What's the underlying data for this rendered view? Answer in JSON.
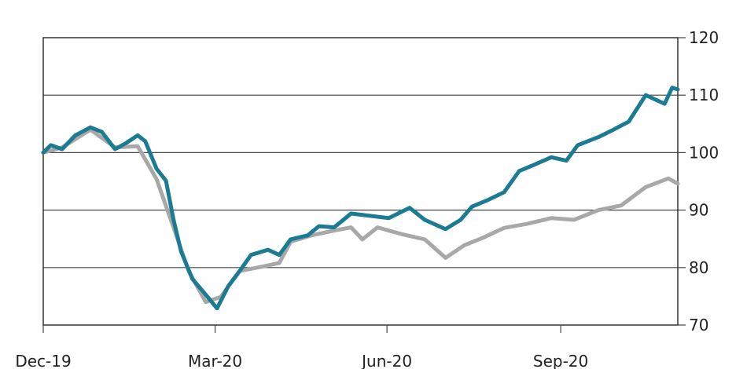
{
  "chart_data": {
    "type": "line",
    "title": "",
    "xlabel": "",
    "ylabel": "",
    "x_range": [
      "2019-12-31",
      "2020-12-01"
    ],
    "ylim": [
      70,
      120
    ],
    "y_ticks": [
      70,
      80,
      90,
      100,
      110,
      120
    ],
    "y_axis_side": "right",
    "x_ticks": [
      {
        "date": "2019-12-31",
        "label": "Dec-19"
      },
      {
        "date": "2020-03-31",
        "label": "Mar-20"
      },
      {
        "date": "2020-06-30",
        "label": "Jun-20"
      },
      {
        "date": "2020-09-30",
        "label": "Sep-20"
      }
    ],
    "grid": "horizontal",
    "legend": "none",
    "series": [
      {
        "color": "#1b7b93",
        "points": [
          [
            "2019-12-31",
            100
          ],
          [
            "2020-01-04",
            101.3
          ],
          [
            "2020-01-10",
            100.6
          ],
          [
            "2020-01-17",
            103
          ],
          [
            "2020-01-25",
            104.4
          ],
          [
            "2020-01-31",
            103.6
          ],
          [
            "2020-02-07",
            100.6
          ],
          [
            "2020-02-13",
            101.7
          ],
          [
            "2020-02-19",
            103
          ],
          [
            "2020-02-23",
            102
          ],
          [
            "2020-02-29",
            97.2
          ],
          [
            "2020-03-05",
            95.1
          ],
          [
            "2020-03-09",
            88.3
          ],
          [
            "2020-03-13",
            82.8
          ],
          [
            "2020-03-19",
            78
          ],
          [
            "2020-03-26",
            75.3
          ],
          [
            "2020-04-01",
            72.9
          ],
          [
            "2020-04-07",
            76.8
          ],
          [
            "2020-04-13",
            79.4
          ],
          [
            "2020-04-19",
            82.2
          ],
          [
            "2020-04-28",
            83.1
          ],
          [
            "2020-05-04",
            82.2
          ],
          [
            "2020-05-10",
            84.9
          ],
          [
            "2020-05-19",
            85.6
          ],
          [
            "2020-05-25",
            87.2
          ],
          [
            "2020-06-02",
            87
          ],
          [
            "2020-06-11",
            89.4
          ],
          [
            "2020-06-21",
            89
          ],
          [
            "2020-07-01",
            88.6
          ],
          [
            "2020-07-12",
            90.4
          ],
          [
            "2020-07-20",
            88.3
          ],
          [
            "2020-07-31",
            86.7
          ],
          [
            "2020-08-08",
            88.3
          ],
          [
            "2020-08-14",
            90.6
          ],
          [
            "2020-08-22",
            91.7
          ],
          [
            "2020-08-31",
            93.1
          ],
          [
            "2020-09-08",
            96.8
          ],
          [
            "2020-09-16",
            97.9
          ],
          [
            "2020-09-25",
            99.2
          ],
          [
            "2020-10-03",
            98.6
          ],
          [
            "2020-10-09",
            101.3
          ],
          [
            "2020-10-20",
            102.7
          ],
          [
            "2020-10-28",
            104
          ],
          [
            "2020-11-05",
            105.4
          ],
          [
            "2020-11-14",
            110
          ],
          [
            "2020-11-24",
            108.5
          ],
          [
            "2020-11-28",
            111.3
          ],
          [
            "2020-12-01",
            111
          ]
        ]
      },
      {
        "color": "#a8a8a8",
        "points": [
          [
            "2019-12-31",
            100
          ],
          [
            "2020-01-10",
            100.9
          ],
          [
            "2020-01-25",
            104
          ],
          [
            "2020-02-07",
            100.9
          ],
          [
            "2020-02-19",
            101.1
          ],
          [
            "2020-02-29",
            95.4
          ],
          [
            "2020-03-09",
            87
          ],
          [
            "2020-03-17",
            79.4
          ],
          [
            "2020-03-26",
            74
          ],
          [
            "2020-04-03",
            74.9
          ],
          [
            "2020-04-13",
            79.4
          ],
          [
            "2020-04-24",
            80.1
          ],
          [
            "2020-05-04",
            80.8
          ],
          [
            "2020-05-10",
            84.5
          ],
          [
            "2020-05-21",
            85.6
          ],
          [
            "2020-05-31",
            86.3
          ],
          [
            "2020-06-11",
            87
          ],
          [
            "2020-06-17",
            84.9
          ],
          [
            "2020-06-25",
            87
          ],
          [
            "2020-07-08",
            85.8
          ],
          [
            "2020-07-20",
            84.9
          ],
          [
            "2020-07-31",
            81.7
          ],
          [
            "2020-08-10",
            83.9
          ],
          [
            "2020-08-20",
            85.2
          ],
          [
            "2020-08-31",
            86.9
          ],
          [
            "2020-09-12",
            87.6
          ],
          [
            "2020-09-25",
            88.6
          ],
          [
            "2020-10-07",
            88.3
          ],
          [
            "2020-10-20",
            90
          ],
          [
            "2020-11-01",
            90.8
          ],
          [
            "2020-11-14",
            94
          ],
          [
            "2020-11-26",
            95.5
          ],
          [
            "2020-12-01",
            94.6
          ]
        ]
      }
    ]
  }
}
